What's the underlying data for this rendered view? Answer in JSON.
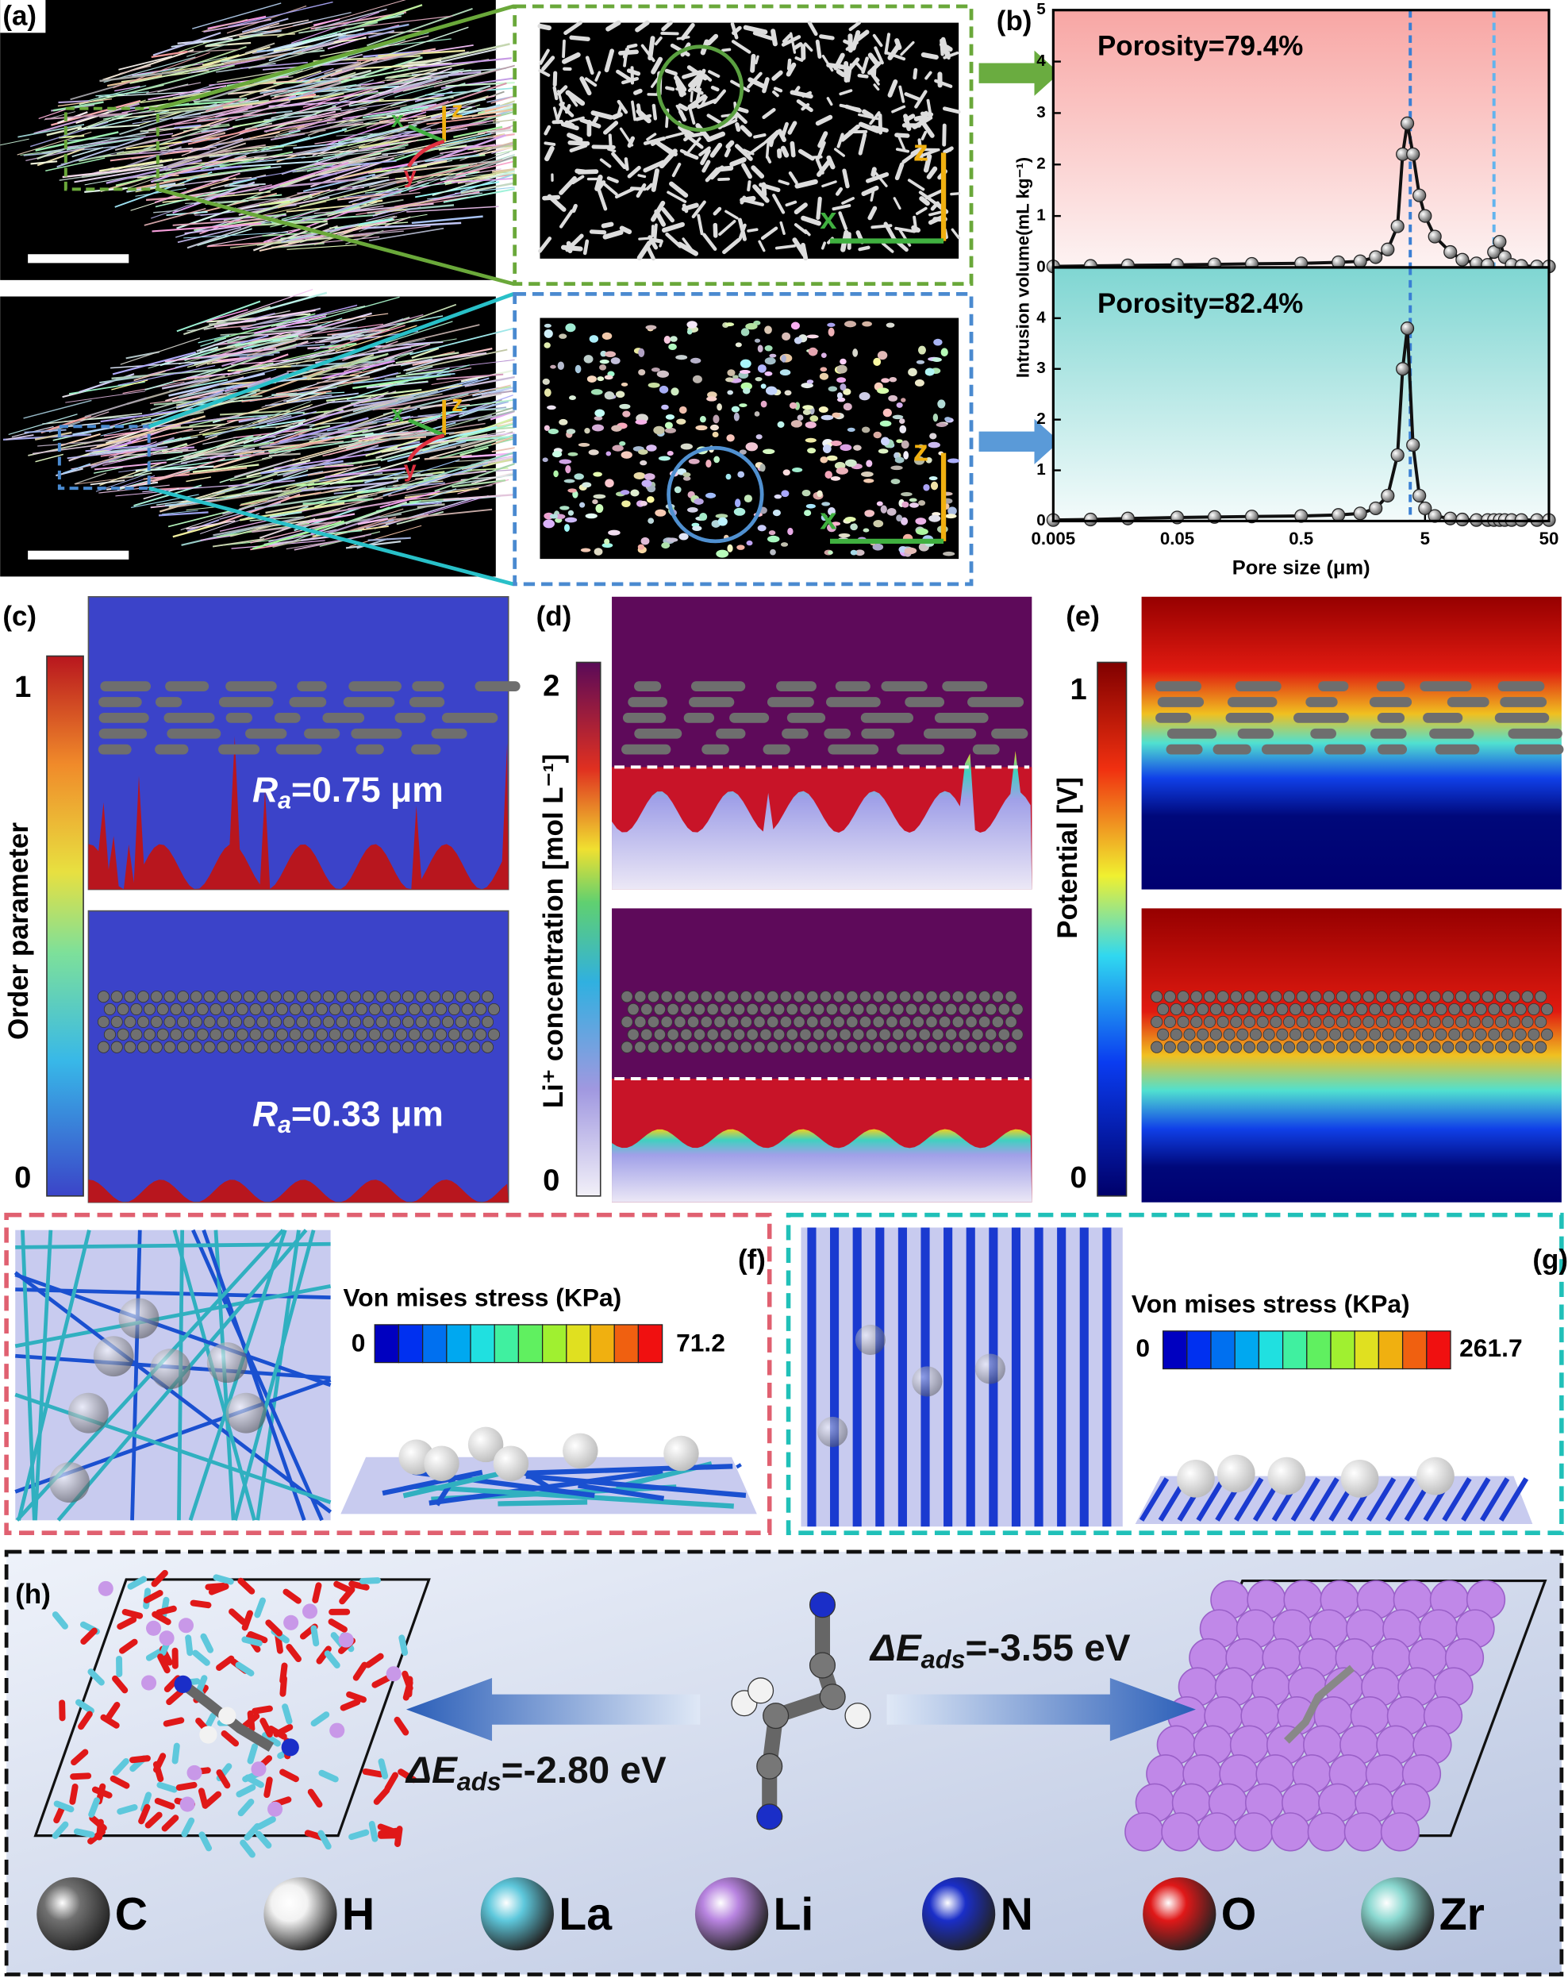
{
  "panel_labels": {
    "a": "(a)",
    "b": "(b)",
    "c": "(c)",
    "d": "(d)",
    "e": "(e)",
    "f": "(f)",
    "g": "(g)",
    "h": "(h)"
  },
  "panel_a": {
    "triads": [
      {
        "x": "x",
        "y": "y",
        "z": "z"
      },
      {
        "x": "x",
        "y": "y",
        "z": "z"
      }
    ],
    "insets": [
      {
        "x": "x",
        "z": "z"
      },
      {
        "x": "x",
        "z": "z"
      }
    ]
  },
  "chart_data": [
    {
      "type": "line",
      "log_x": true,
      "xlim": [
        0.005,
        50
      ],
      "ylim": [
        0,
        5
      ],
      "yticks": [
        0,
        1,
        2,
        3,
        4,
        5
      ],
      "ylabel": "Intrusion volume(mL kg⁻¹)",
      "annotation": "Porosity=79.4%",
      "background": [
        "#f8a6a4",
        "#fdf3f3"
      ],
      "x": [
        0.005,
        0.01,
        0.02,
        0.05,
        0.1,
        0.2,
        0.5,
        1,
        1.5,
        2,
        2.5,
        3,
        3.3,
        3.6,
        4,
        4.5,
        5,
        6,
        8,
        10,
        13,
        16,
        18,
        20,
        22,
        25,
        30,
        40,
        50
      ],
      "series": [
        {
          "color": "#111111",
          "values": [
            0.02,
            0.03,
            0.04,
            0.05,
            0.06,
            0.07,
            0.08,
            0.1,
            0.12,
            0.2,
            0.35,
            0.8,
            2.2,
            2.8,
            2.2,
            1.4,
            1.0,
            0.6,
            0.3,
            0.15,
            0.08,
            0.05,
            0.3,
            0.5,
            0.2,
            0.05,
            0.03,
            0.02,
            0.02
          ]
        }
      ],
      "vlines": [
        {
          "x": 3.8,
          "color": "#3a7fd4"
        },
        {
          "x": 18,
          "color": "#62b4ee"
        }
      ]
    },
    {
      "type": "line",
      "log_x": true,
      "xlim": [
        0.005,
        50
      ],
      "ylim": [
        0,
        5
      ],
      "yticks": [
        0,
        1,
        2,
        3,
        4
      ],
      "xticks": [
        0.005,
        0.05,
        0.5,
        5,
        50
      ],
      "xlabel": "Pore size (μm)",
      "annotation": "Porosity=82.4%",
      "background": [
        "#7fd6d2",
        "#f4fbfb"
      ],
      "x": [
        0.005,
        0.01,
        0.02,
        0.05,
        0.1,
        0.2,
        0.5,
        1,
        1.5,
        2,
        2.5,
        3,
        3.3,
        3.6,
        4,
        4.5,
        5,
        6,
        8,
        10,
        13,
        16,
        18,
        20,
        22,
        25,
        30,
        40,
        50
      ],
      "series": [
        {
          "color": "#111111",
          "values": [
            0.02,
            0.03,
            0.05,
            0.07,
            0.08,
            0.09,
            0.1,
            0.12,
            0.15,
            0.25,
            0.5,
            1.3,
            3.0,
            3.8,
            1.5,
            0.5,
            0.25,
            0.1,
            0.05,
            0.03,
            0.02,
            0.02,
            0.02,
            0.02,
            0.02,
            0.02,
            0.02,
            0.02,
            0.02
          ]
        }
      ],
      "vlines": [
        {
          "x": 3.8,
          "color": "#3a7fd4"
        }
      ]
    }
  ],
  "panel_c": {
    "colorbar_title": "Order parameter",
    "colorbar_max": "1",
    "colorbar_min": "0",
    "roughness": [
      {
        "symbol": "R",
        "subscript": "a",
        "text": "=0.75 μm"
      },
      {
        "symbol": "R",
        "subscript": "a",
        "text": "=0.33 μm"
      }
    ]
  },
  "panel_d": {
    "colorbar_title": "Li⁺ concentration [mol L⁻¹]",
    "colorbar_max": "2",
    "colorbar_min": "0"
  },
  "panel_e": {
    "colorbar_title": "Potential [V]",
    "colorbar_max": "1",
    "colorbar_min": "0"
  },
  "panel_f": {
    "colorbar_title": "Von mises stress (KPa)",
    "colorbar_min": "0",
    "colorbar_max": "71.2"
  },
  "panel_g": {
    "colorbar_title": "Von mises stress (KPa)",
    "colorbar_min": "0",
    "colorbar_max": "261.7"
  },
  "panel_h": {
    "adsorption": [
      {
        "symbol": "ΔE",
        "subscript": "ads",
        "text": "=-3.55 eV"
      },
      {
        "symbol": "ΔE",
        "subscript": "ads",
        "text": "=-2.80 eV"
      }
    ],
    "legend": [
      {
        "label": "C",
        "color": "#707070"
      },
      {
        "label": "H",
        "color": "#f2f2f2"
      },
      {
        "label": "La",
        "color": "#5ec8dc"
      },
      {
        "label": "Li",
        "color": "#b884e0"
      },
      {
        "label": "N",
        "color": "#1a2ec8"
      },
      {
        "label": "O",
        "color": "#e01818"
      },
      {
        "label": "Zr",
        "color": "#8ad8d0"
      }
    ]
  }
}
